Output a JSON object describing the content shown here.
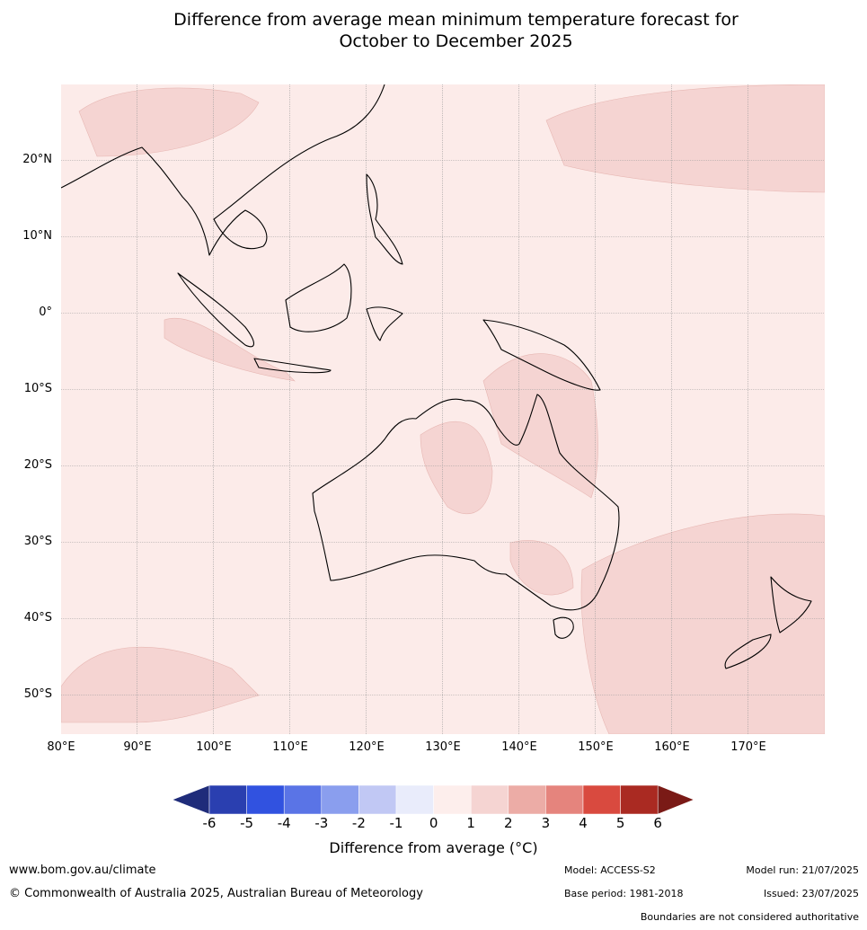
{
  "title_line1": "Difference from average mean minimum temperature forecast for",
  "title_line2": "October to December 2025",
  "lat_labels": [
    "20°N",
    "10°N",
    "0°",
    "10°S",
    "20°S",
    "30°S",
    "40°S",
    "50°S"
  ],
  "lon_labels": [
    "80°E",
    "90°E",
    "100°E",
    "110°E",
    "120°E",
    "130°E",
    "140°E",
    "150°E",
    "160°E",
    "170°E"
  ],
  "legend": {
    "ticks": [
      "-6",
      "-5",
      "-4",
      "-3",
      "-2",
      "-1",
      "0",
      "1",
      "2",
      "3",
      "4",
      "5",
      "6"
    ],
    "colors": [
      "#1f2c7a",
      "#2a3fb0",
      "#3152e0",
      "#5a74e6",
      "#8a9eee",
      "#c1c8f4",
      "#e9ecfb",
      "#fdeeec",
      "#f5d4d2",
      "#ecaca6",
      "#e5847d",
      "#d94a3f",
      "#aa2a22",
      "#7a1a16"
    ],
    "label": "Difference from average ($^\\circ$C)",
    "label_display": "Difference from average (°C)"
  },
  "footer": {
    "website": "www.bom.gov.au/climate",
    "copyright": "© Commonwealth of Australia 2025, Australian Bureau of Meteorology",
    "model": "Model: ACCESS-S2",
    "base_period": "Base period: 1981-2018",
    "model_run": "Model run: 21/07/2025",
    "issued": "Issued: 23/07/2025",
    "boundaries_note": "Boundaries are not considered authoritative"
  }
}
